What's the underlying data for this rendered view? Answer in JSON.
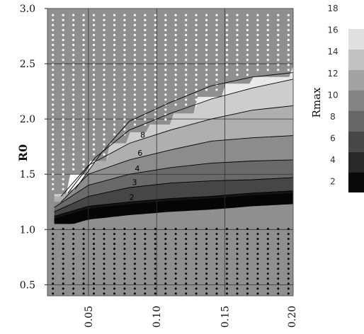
{
  "chart_data": {
    "type": "heatmap",
    "title": "",
    "xlabel": "",
    "ylabel": "R0",
    "xlim": [
      0.02,
      0.2
    ],
    "ylim": [
      0.4,
      3.0
    ],
    "x_ticks": [
      "0.05",
      "0.10",
      "0.15",
      "0.20"
    ],
    "y_ticks": [
      "0.5",
      "1.0",
      "1.5",
      "2.0",
      "2.5",
      "3.0"
    ],
    "colorbar": {
      "label": "Rmax",
      "range": [
        1,
        18
      ],
      "ticks": [
        "2",
        "4",
        "6",
        "8",
        "10",
        "12",
        "14",
        "16",
        "18"
      ],
      "colormap": "grayscale (dark = low, white = high)"
    },
    "contours": [
      {
        "level": 2,
        "label": "2",
        "points": [
          [
            0.025,
            1.12
          ],
          [
            0.05,
            1.21
          ],
          [
            0.08,
            1.25
          ],
          [
            0.11,
            1.28
          ],
          [
            0.14,
            1.3
          ],
          [
            0.17,
            1.33
          ],
          [
            0.2,
            1.35
          ]
        ]
      },
      {
        "level": 3,
        "label": "3",
        "points": [
          [
            0.025,
            1.16
          ],
          [
            0.05,
            1.3
          ],
          [
            0.08,
            1.38
          ],
          [
            0.11,
            1.42
          ],
          [
            0.14,
            1.44
          ],
          [
            0.17,
            1.45
          ],
          [
            0.2,
            1.47
          ]
        ]
      },
      {
        "level": 4,
        "label": "4",
        "points": [
          [
            0.025,
            1.2
          ],
          [
            0.05,
            1.4
          ],
          [
            0.08,
            1.5
          ],
          [
            0.11,
            1.56
          ],
          [
            0.14,
            1.6
          ],
          [
            0.17,
            1.62
          ],
          [
            0.2,
            1.63
          ]
        ]
      },
      {
        "level": 6,
        "label": "6",
        "points": [
          [
            0.03,
            1.25
          ],
          [
            0.05,
            1.5
          ],
          [
            0.08,
            1.63
          ],
          [
            0.11,
            1.72
          ],
          [
            0.14,
            1.8
          ],
          [
            0.17,
            1.83
          ],
          [
            0.2,
            1.85
          ]
        ]
      },
      {
        "level": 8,
        "label": "8",
        "points": [
          [
            0.03,
            1.3
          ],
          [
            0.05,
            1.58
          ],
          [
            0.08,
            1.78
          ],
          [
            0.11,
            1.9
          ],
          [
            0.14,
            2.0
          ],
          [
            0.17,
            2.08
          ],
          [
            0.2,
            2.12
          ]
        ]
      },
      {
        "level": 10,
        "label": "",
        "points": [
          [
            0.035,
            1.33
          ],
          [
            0.055,
            1.65
          ],
          [
            0.08,
            1.9
          ],
          [
            0.11,
            2.05
          ],
          [
            0.14,
            2.18
          ],
          [
            0.17,
            2.28
          ],
          [
            0.2,
            2.36
          ]
        ]
      },
      {
        "level": 12,
        "label": "",
        "points": [
          [
            0.04,
            1.36
          ],
          [
            0.06,
            1.7
          ],
          [
            0.08,
            1.98
          ],
          [
            0.11,
            2.15
          ],
          [
            0.14,
            2.3
          ],
          [
            0.17,
            2.38
          ],
          [
            0.2,
            2.42
          ]
        ]
      }
    ],
    "markers": {
      "white_dots": "region above the colored wedge (high R0, non-viable parameter region)",
      "black_dots": "region below R0 ~ 1.1"
    }
  }
}
